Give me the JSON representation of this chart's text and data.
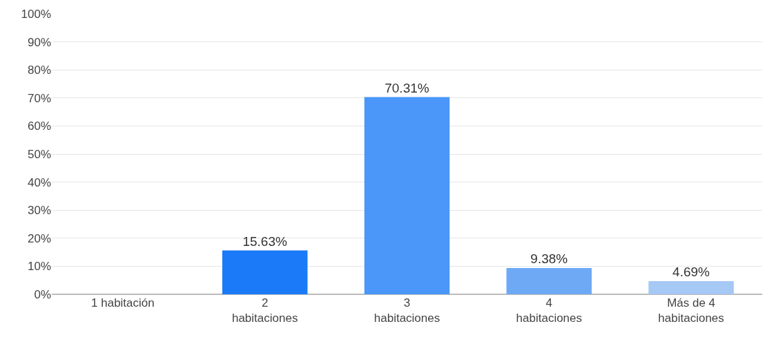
{
  "chart_data": {
    "type": "bar",
    "categories": [
      "1 habitación",
      "2 habitaciones",
      "3 habitaciones",
      "4 habitaciones",
      "Más de 4 habitaciones"
    ],
    "values": [
      0,
      15.63,
      70.31,
      9.38,
      4.69
    ],
    "colors": [
      "#1a7af8",
      "#1a7af8",
      "#4a96f9",
      "#6ea9f5",
      "#a5c8f5"
    ],
    "value_labels": [
      null,
      "15.63%",
      "70.31%",
      "9.38%",
      "4.69%"
    ],
    "ylim": [
      0,
      100
    ],
    "yticks": [
      {
        "value": 0,
        "label": "0%"
      },
      {
        "value": 10,
        "label": "10%"
      },
      {
        "value": 20,
        "label": "20%"
      },
      {
        "value": 30,
        "label": "30%"
      },
      {
        "value": 40,
        "label": "40%"
      },
      {
        "value": 50,
        "label": "50%"
      },
      {
        "value": 60,
        "label": "60%"
      },
      {
        "value": 70,
        "label": "70%"
      },
      {
        "value": 80,
        "label": "80%"
      },
      {
        "value": 90,
        "label": "90%"
      },
      {
        "value": 100,
        "label": "100%"
      }
    ],
    "grid": "y"
  }
}
